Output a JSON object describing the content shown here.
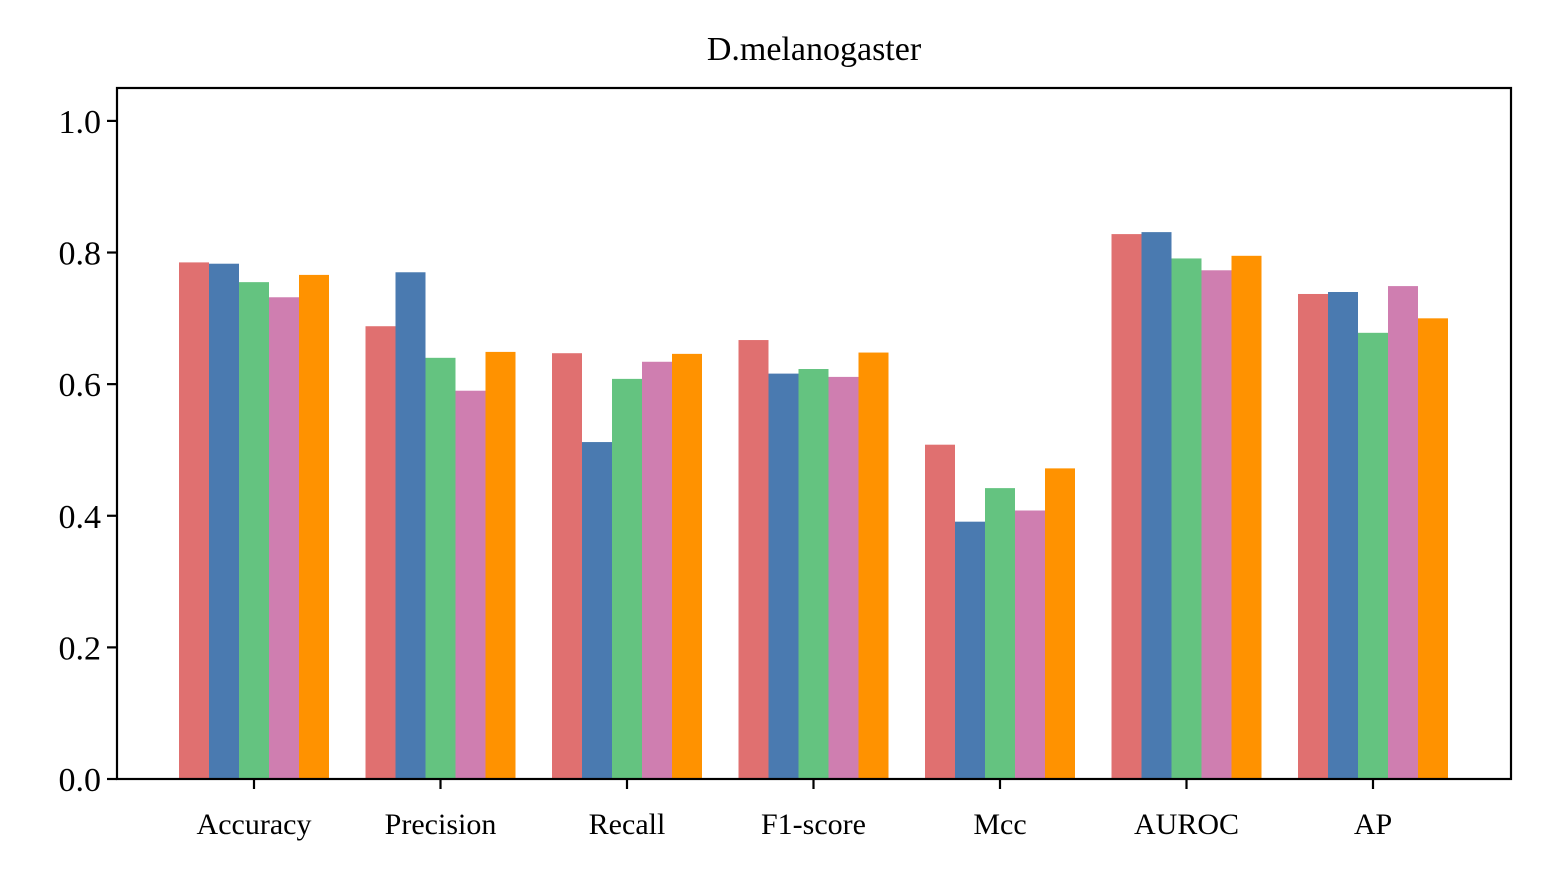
{
  "chart_data": {
    "type": "bar",
    "title": "D.melanogaster",
    "xlabel": "",
    "ylabel": "",
    "ylim": [
      0,
      1.05
    ],
    "yticks": [
      0.0,
      0.2,
      0.4,
      0.6,
      0.8,
      1.0
    ],
    "ytick_labels": [
      "0.0",
      "0.2",
      "0.4",
      "0.6",
      "0.8",
      "1.0"
    ],
    "categories": [
      "Accuracy",
      "Precision",
      "Recall",
      "F1-score",
      "Mcc",
      "AUROC",
      "AP"
    ],
    "grid": false,
    "legend": "none",
    "series": [
      {
        "color": "#E07070",
        "values": [
          0.785,
          0.688,
          0.647,
          0.667,
          0.508,
          0.828,
          0.737
        ]
      },
      {
        "color": "#4A7AB0",
        "values": [
          0.783,
          0.77,
          0.512,
          0.616,
          0.391,
          0.831,
          0.74
        ]
      },
      {
        "color": "#64C380",
        "values": [
          0.755,
          0.64,
          0.608,
          0.623,
          0.442,
          0.791,
          0.678
        ]
      },
      {
        "color": "#CF7EB0",
        "values": [
          0.732,
          0.59,
          0.634,
          0.611,
          0.408,
          0.773,
          0.749
        ]
      },
      {
        "color": "#FF9200",
        "values": [
          0.766,
          0.649,
          0.646,
          0.648,
          0.472,
          0.795,
          0.7
        ]
      }
    ]
  }
}
